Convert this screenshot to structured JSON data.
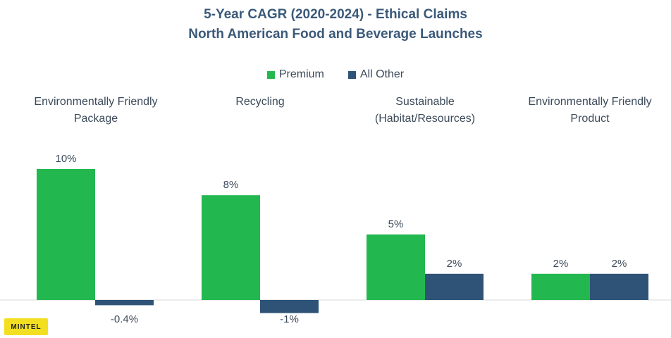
{
  "chart_data": {
    "type": "bar",
    "title": "5-Year CAGR (2020-2024) - Ethical Claims",
    "subtitle": "North American Food and Beverage Launches",
    "categories": [
      [
        "Environmentally Friendly",
        "Package"
      ],
      [
        "Recycling"
      ],
      [
        "Sustainable",
        "(Habitat/Resources)"
      ],
      [
        "Environmentally Friendly",
        "Product"
      ]
    ],
    "series": [
      {
        "name": "Premium",
        "color": "#22b84f",
        "values": [
          10,
          8,
          5,
          2
        ],
        "labels": [
          "10%",
          "8%",
          "5%",
          "2%"
        ]
      },
      {
        "name": "All Other",
        "color": "#2e5376",
        "values": [
          -0.4,
          -1,
          2,
          2
        ],
        "labels": [
          "-0.4%",
          "-1%",
          "2%",
          "2%"
        ]
      }
    ],
    "ylim": [
      -1,
      10
    ],
    "grid": false,
    "legend_position": "top-center"
  },
  "logo_text": "MINTEL"
}
